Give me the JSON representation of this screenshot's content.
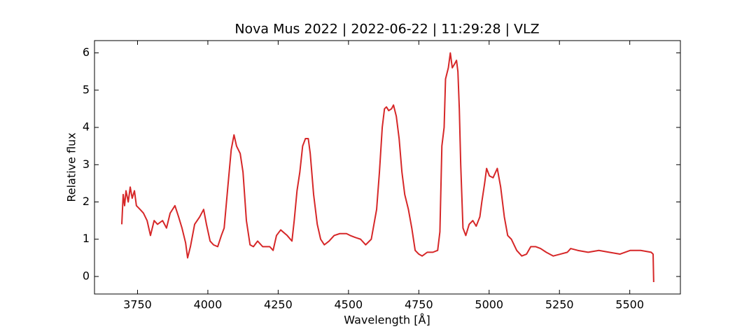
{
  "chart_data": {
    "type": "line",
    "title": "Nova Mus 2022 | 2022-06-22 | 11:29:28 | VLZ",
    "xlabel": "Wavelength [Å]",
    "ylabel": "Relative flux",
    "xlim": [
      3597,
      5680
    ],
    "ylim": [
      -0.47,
      6.33
    ],
    "xticks": [
      3750,
      4000,
      4250,
      4500,
      4750,
      5000,
      5250,
      5500
    ],
    "yticks": [
      0,
      1,
      2,
      3,
      4,
      5,
      6
    ],
    "grid": false,
    "series": [
      {
        "color": "#d62728",
        "x": [
          3694,
          3699,
          3704,
          3709,
          3717,
          3724,
          3731,
          3739,
          3746,
          3759,
          3771,
          3784,
          3796,
          3809,
          3821,
          3839,
          3853,
          3866,
          3883,
          3896,
          3908,
          3921,
          3928,
          3938,
          3953,
          3971,
          3985,
          3995,
          4008,
          4020,
          4035,
          4048,
          4058,
          4071,
          4083,
          4093,
          4102,
          4115,
          4125,
          4137,
          4150,
          4162,
          4177,
          4195,
          4220,
          4232,
          4244,
          4259,
          4282,
          4299,
          4307,
          4317,
          4327,
          4337,
          4347,
          4357,
          4364,
          4376,
          4389,
          4401,
          4414,
          4431,
          4449,
          4469,
          4493,
          4506,
          4523,
          4543,
          4561,
          4581,
          4600,
          4610,
          4620,
          4628,
          4635,
          4643,
          4653,
          4660,
          4670,
          4680,
          4690,
          4700,
          4713,
          4725,
          4737,
          4750,
          4762,
          4780,
          4800,
          4817,
          4825,
          4832,
          4840,
          4845,
          4855,
          4862,
          4869,
          4877,
          4884,
          4889,
          4894,
          4899,
          4907,
          4917,
          4929,
          4942,
          4954,
          4967,
          4974,
          4984,
          4991,
          5001,
          5014,
          5029,
          5041,
          5054,
          5066,
          5079,
          5098,
          5116,
          5133,
          5148,
          5166,
          5183,
          5203,
          5228,
          5253,
          5278,
          5290,
          5315,
          5352,
          5390,
          5427,
          5465,
          5502,
          5539,
          5576,
          5583,
          5585
        ],
        "values": [
          1.4,
          2.2,
          1.9,
          2.3,
          2.0,
          2.4,
          2.1,
          2.3,
          1.9,
          1.8,
          1.7,
          1.5,
          1.1,
          1.5,
          1.4,
          1.5,
          1.3,
          1.7,
          1.9,
          1.6,
          1.3,
          0.9,
          0.5,
          0.8,
          1.4,
          1.6,
          1.8,
          1.4,
          0.95,
          0.85,
          0.8,
          1.1,
          1.3,
          2.4,
          3.4,
          3.8,
          3.5,
          3.3,
          2.8,
          1.5,
          0.85,
          0.8,
          0.95,
          0.8,
          0.8,
          0.7,
          1.1,
          1.25,
          1.1,
          0.95,
          1.5,
          2.3,
          2.8,
          3.5,
          3.7,
          3.7,
          3.3,
          2.2,
          1.4,
          1.0,
          0.85,
          0.95,
          1.1,
          1.15,
          1.15,
          1.1,
          1.05,
          1.0,
          0.85,
          1.0,
          1.8,
          2.8,
          4.0,
          4.5,
          4.55,
          4.45,
          4.5,
          4.6,
          4.3,
          3.7,
          2.8,
          2.2,
          1.8,
          1.3,
          0.7,
          0.6,
          0.55,
          0.65,
          0.65,
          0.7,
          1.2,
          3.5,
          4.0,
          5.3,
          5.6,
          6.0,
          5.6,
          5.7,
          5.8,
          5.5,
          4.5,
          3.0,
          1.3,
          1.1,
          1.4,
          1.5,
          1.35,
          1.6,
          2.0,
          2.5,
          2.9,
          2.7,
          2.65,
          2.9,
          2.4,
          1.6,
          1.1,
          1.0,
          0.7,
          0.55,
          0.6,
          0.8,
          0.8,
          0.75,
          0.65,
          0.55,
          0.6,
          0.65,
          0.75,
          0.7,
          0.65,
          0.7,
          0.65,
          0.6,
          0.7,
          0.7,
          0.65,
          0.6,
          -0.15
        ]
      }
    ]
  }
}
